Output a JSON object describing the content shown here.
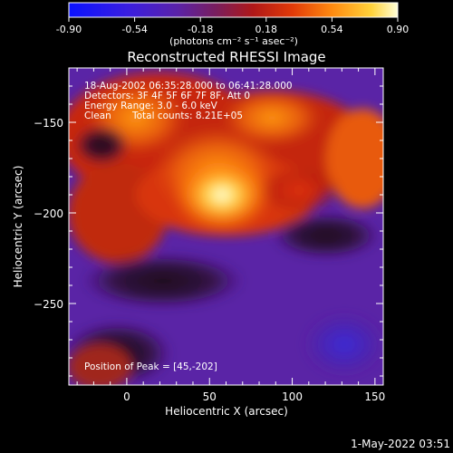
{
  "colorbar": {
    "ticks": [
      "-0.90",
      "-0.54",
      "-0.18",
      "0.18",
      "0.54",
      "0.90"
    ],
    "unit_label": "(photons cm⁻² s⁻¹ asec⁻²)",
    "range": [
      -0.9,
      0.9
    ]
  },
  "chart_data": {
    "type": "heatmap",
    "title": "Reconstructed RHESSI Image",
    "xlabel": "Heliocentric X (arcsec)",
    "ylabel": "Heliocentric Y (arcsec)",
    "xlim": [
      -35,
      155
    ],
    "ylim": [
      -295,
      -120
    ],
    "x_ticks": [
      0,
      50,
      100,
      150
    ],
    "x_tick_labels": [
      "0",
      "50",
      "100",
      "150"
    ],
    "y_ticks": [
      -150,
      -200,
      -250
    ],
    "y_tick_labels": [
      "−150",
      "−200",
      "−250"
    ],
    "colormap": "rhessi-blue-purple-red-yellow-white",
    "peak": [
      45,
      -202
    ],
    "annotations": [
      "18-Aug-2002 06:35:28.000 to 06:41:28.000",
      "Detectors: 3F 4F 5F 6F 7F 8F, Att 0",
      "Energy Range: 3.0 - 6.0 keV",
      "Clean",
      "Total counts: 8.21E+05",
      "Position of Peak = [45,-202]"
    ]
  },
  "footer": {
    "timestamp": "1-May-2022 03:51"
  }
}
